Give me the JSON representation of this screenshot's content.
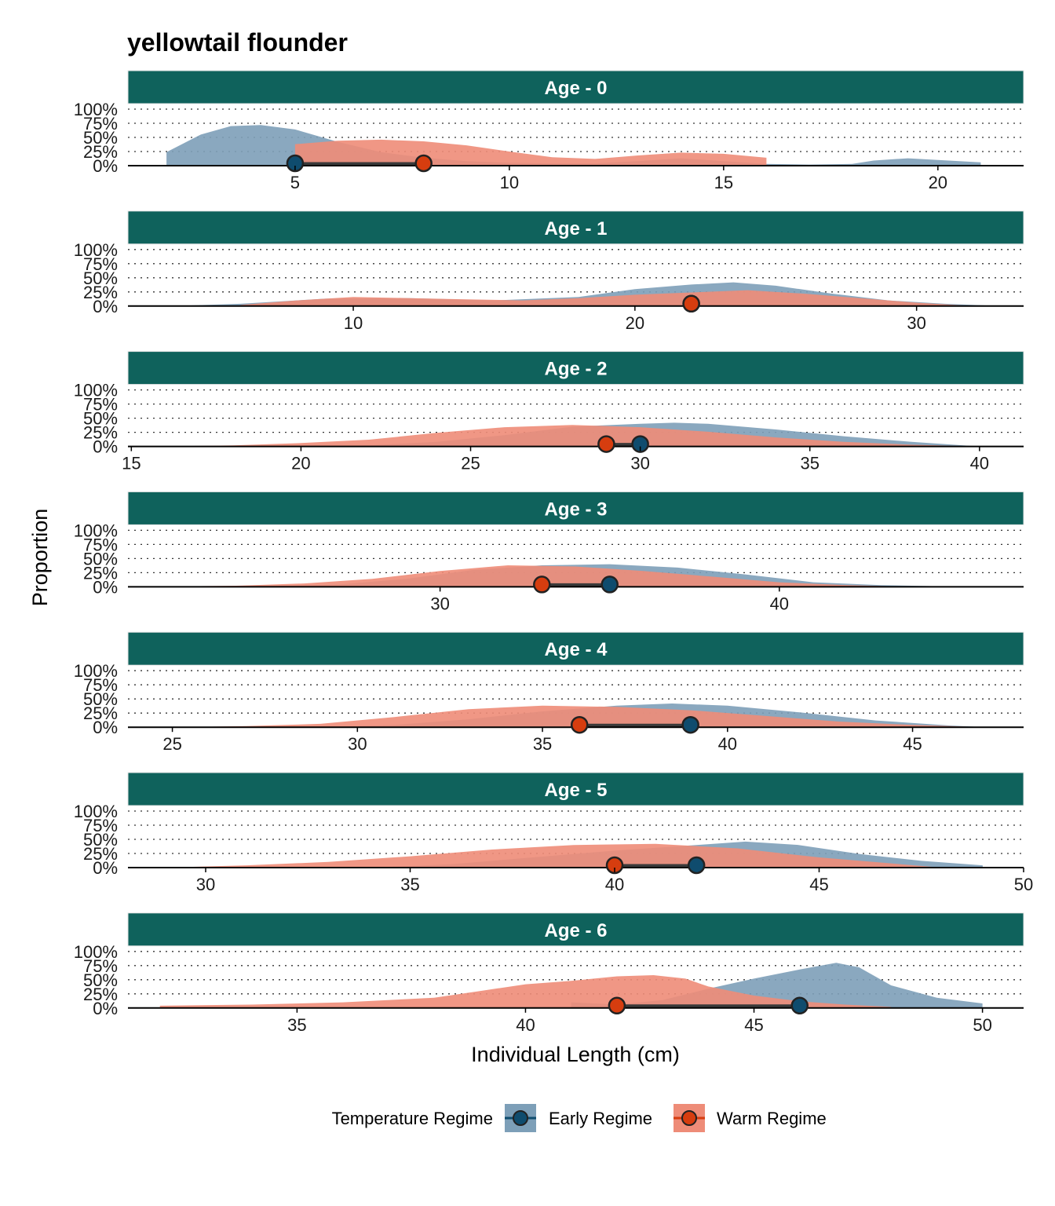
{
  "chart_data": {
    "type": "area",
    "title": "yellowtail flounder",
    "xlabel": "Individual Length (cm)",
    "ylabel": "Proportion",
    "y_ticks": [
      "0%",
      "25%",
      "50%",
      "75%",
      "100%"
    ],
    "ylim": [
      0,
      1
    ],
    "grid": "dotted horizontal",
    "legend": {
      "title": "Temperature Regime",
      "placement": "bottom",
      "entries": [
        {
          "name": "Early Regime",
          "fill": "#7d9fb8",
          "point": "#0f4c6e"
        },
        {
          "name": "Warm Regime",
          "fill": "#ee8c78",
          "point": "#d63d0f"
        }
      ]
    },
    "colors": {
      "strip": "#0f625c",
      "early_fill": "#7d9fb8",
      "warm_fill": "#ee8c78",
      "early_point": "#0f4c6e",
      "warm_point": "#d63d0f"
    },
    "panels": [
      {
        "label": "Age - 0",
        "xlim": [
          1.1,
          22.0
        ],
        "x_ticks": [
          5,
          10,
          15,
          20
        ],
        "series": [
          {
            "name": "Early Regime",
            "x": [
              2,
              2.8,
              3.5,
              4.2,
              5,
              6,
              7,
              8,
              9,
              10,
              11,
              12,
              13,
              14,
              15,
              16,
              17,
              18,
              18.5,
              19.3,
              20,
              21
            ],
            "y": [
              0.24,
              0.55,
              0.7,
              0.72,
              0.64,
              0.42,
              0.24,
              0.14,
              0.08,
              0.05,
              0.04,
              0.04,
              0.08,
              0.13,
              0.08,
              0.03,
              0.02,
              0.03,
              0.09,
              0.13,
              0.1,
              0.06
            ]
          },
          {
            "name": "Warm Regime",
            "x": [
              5,
              6,
              7,
              8,
              9,
              10,
              11,
              12,
              13,
              14,
              15,
              16
            ],
            "y": [
              0.38,
              0.44,
              0.46,
              0.43,
              0.36,
              0.25,
              0.15,
              0.12,
              0.18,
              0.23,
              0.21,
              0.14
            ]
          }
        ],
        "means": [
          {
            "series": "Early Regime",
            "x": 5.0
          },
          {
            "series": "Warm Regime",
            "x": 8.0
          }
        ]
      },
      {
        "label": "Age - 1",
        "xlim": [
          2.0,
          33.8
        ],
        "x_ticks": [
          10,
          20,
          30
        ],
        "series": [
          {
            "name": "Early Regime",
            "x": [
              3.5,
              6,
              9,
              12,
              15,
              18,
              20,
              22,
              23.5,
              25,
              27,
              29,
              31,
              33
            ],
            "y": [
              0.0,
              0.04,
              0.13,
              0.14,
              0.1,
              0.16,
              0.3,
              0.38,
              0.42,
              0.36,
              0.22,
              0.1,
              0.04,
              0.0
            ]
          },
          {
            "name": "Warm Regime",
            "x": [
              6,
              8,
              10,
              12,
              14,
              16,
              18,
              20,
              22,
              24,
              26,
              28,
              30,
              32
            ],
            "y": [
              0.02,
              0.1,
              0.16,
              0.14,
              0.12,
              0.1,
              0.14,
              0.2,
              0.24,
              0.28,
              0.22,
              0.14,
              0.06,
              0.0
            ]
          }
        ],
        "means": [
          {
            "series": "Early Regime",
            "x": 22.0
          },
          {
            "series": "Warm Regime",
            "x": 22.0
          }
        ]
      },
      {
        "label": "Age - 2",
        "xlim": [
          14.9,
          41.3
        ],
        "x_ticks": [
          15,
          20,
          25,
          30,
          35,
          40
        ],
        "series": [
          {
            "name": "Early Regime",
            "x": [
              20,
              22,
              24,
              26,
              28,
              30,
              31,
              32,
              34,
              36,
              38,
              40
            ],
            "y": [
              0.0,
              0.02,
              0.08,
              0.2,
              0.35,
              0.4,
              0.42,
              0.4,
              0.3,
              0.18,
              0.08,
              0.0
            ]
          },
          {
            "name": "Warm Regime",
            "x": [
              16,
              18,
              20,
              22,
              24,
              26,
              28,
              30,
              32,
              34,
              36,
              38,
              40
            ],
            "y": [
              0.0,
              0.02,
              0.06,
              0.12,
              0.24,
              0.34,
              0.38,
              0.34,
              0.26,
              0.16,
              0.08,
              0.03,
              0.0
            ]
          }
        ],
        "means": [
          {
            "series": "Early Regime",
            "x": 30.0
          },
          {
            "series": "Warm Regime",
            "x": 29.0
          }
        ]
      },
      {
        "label": "Age - 3",
        "xlim": [
          20.8,
          47.2
        ],
        "x_ticks": [
          30,
          40
        ],
        "series": [
          {
            "name": "Early Regime",
            "x": [
              24,
              27,
              29,
              31,
              33,
              35,
              37,
              39,
              41,
              43,
              45.5
            ],
            "y": [
              0.0,
              0.04,
              0.14,
              0.3,
              0.38,
              0.4,
              0.34,
              0.22,
              0.08,
              0.03,
              0.0
            ]
          },
          {
            "name": "Warm Regime",
            "x": [
              21,
              24,
              26,
              28,
              30,
              32,
              34,
              36,
              38,
              40,
              42,
              44
            ],
            "y": [
              0.0,
              0.02,
              0.06,
              0.14,
              0.28,
              0.38,
              0.36,
              0.28,
              0.18,
              0.08,
              0.03,
              0.0
            ]
          }
        ],
        "means": [
          {
            "series": "Early Regime",
            "x": 35.0
          },
          {
            "series": "Warm Regime",
            "x": 33.0
          }
        ]
      },
      {
        "label": "Age - 4",
        "xlim": [
          23.8,
          48.0
        ],
        "x_ticks": [
          25,
          30,
          35,
          40,
          45
        ],
        "series": [
          {
            "name": "Early Regime",
            "x": [
              29,
              31,
              33,
              35,
              37,
              38.5,
              40,
              42,
              44,
              46,
              47
            ],
            "y": [
              0.0,
              0.04,
              0.14,
              0.28,
              0.38,
              0.42,
              0.38,
              0.26,
              0.12,
              0.03,
              0.0
            ]
          },
          {
            "name": "Warm Regime",
            "x": [
              25,
              27,
              29,
              31,
              33,
              35,
              37,
              39,
              41,
              43,
              45,
              47
            ],
            "y": [
              0.0,
              0.02,
              0.06,
              0.18,
              0.32,
              0.38,
              0.36,
              0.3,
              0.2,
              0.1,
              0.04,
              0.0
            ]
          }
        ],
        "means": [
          {
            "series": "Early Regime",
            "x": 39.0
          },
          {
            "series": "Warm Regime",
            "x": 36.0
          }
        ]
      },
      {
        "label": "Age - 5",
        "xlim": [
          28.1,
          50.0
        ],
        "x_ticks": [
          30,
          35,
          40,
          45,
          50
        ],
        "series": [
          {
            "name": "Early Regime",
            "x": [
              34,
              36,
              38,
              40,
              42,
              43.2,
              44.5,
              46,
              47.5,
              49
            ],
            "y": [
              0.0,
              0.06,
              0.18,
              0.3,
              0.4,
              0.46,
              0.4,
              0.24,
              0.12,
              0.04
            ]
          },
          {
            "name": "Warm Regime",
            "x": [
              29,
              31,
              33,
              35,
              37,
              39,
              41,
              43,
              45,
              47,
              48
            ],
            "y": [
              0.0,
              0.04,
              0.1,
              0.2,
              0.32,
              0.4,
              0.42,
              0.34,
              0.18,
              0.06,
              0.0
            ]
          }
        ],
        "means": [
          {
            "series": "Early Regime",
            "x": 42.0
          },
          {
            "series": "Warm Regime",
            "x": 40.0
          }
        ]
      },
      {
        "label": "Age - 6",
        "xlim": [
          31.3,
          50.9
        ],
        "x_ticks": [
          35,
          40,
          45,
          50
        ],
        "series": [
          {
            "name": "Early Regime",
            "x": [
              41,
              42,
              43,
              44,
              45,
              46,
              46.8,
              47.3,
              48,
              49,
              50
            ],
            "y": [
              0.1,
              0.06,
              0.14,
              0.34,
              0.52,
              0.68,
              0.8,
              0.72,
              0.4,
              0.18,
              0.08
            ]
          },
          {
            "name": "Warm Regime",
            "x": [
              32,
              34,
              36,
              38,
              39,
              40,
              41,
              42,
              42.8,
              43.5,
              44,
              45,
              46,
              47,
              48
            ],
            "y": [
              0.04,
              0.06,
              0.1,
              0.18,
              0.3,
              0.42,
              0.48,
              0.56,
              0.58,
              0.52,
              0.38,
              0.22,
              0.12,
              0.06,
              0.02
            ]
          }
        ],
        "means": [
          {
            "series": "Early Regime",
            "x": 46.0
          },
          {
            "series": "Warm Regime",
            "x": 42.0
          }
        ]
      }
    ]
  }
}
